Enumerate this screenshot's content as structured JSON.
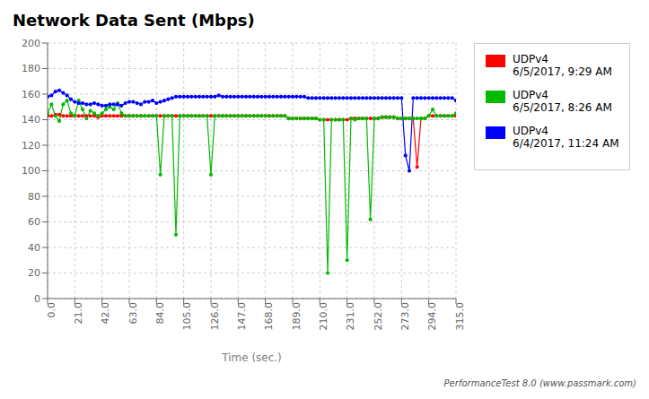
{
  "chart_data": {
    "type": "line",
    "title": "Network Data Sent (Mbps)",
    "xlabel": "Time (sec.)",
    "annotations": [
      "PerformanceTest 8.0 (www.passmark.com)"
    ],
    "xlim": [
      0,
      315
    ],
    "ylim": [
      0,
      200
    ],
    "xticks": [
      {
        "value": 0,
        "label": "0.0"
      },
      {
        "value": 21,
        "label": "21.0"
      },
      {
        "value": 42,
        "label": "42.0"
      },
      {
        "value": 63,
        "label": "63.0"
      },
      {
        "value": 84,
        "label": "84.0"
      },
      {
        "value": 105,
        "label": "105.0"
      },
      {
        "value": 126,
        "label": "126.0"
      },
      {
        "value": 147,
        "label": "147.0"
      },
      {
        "value": 168,
        "label": "168.0"
      },
      {
        "value": 189,
        "label": "189.0"
      },
      {
        "value": 210,
        "label": "210.0"
      },
      {
        "value": 231,
        "label": "231.0"
      },
      {
        "value": 252,
        "label": "252.0"
      },
      {
        "value": 273,
        "label": "273.0"
      },
      {
        "value": 294,
        "label": "294.0"
      },
      {
        "value": 315,
        "label": "315.0"
      }
    ],
    "yticks": [
      0,
      20,
      40,
      60,
      80,
      100,
      120,
      140,
      160,
      180,
      200
    ],
    "grid": true,
    "legend": "right",
    "marker": "circle",
    "x": [
      0,
      3,
      6,
      9,
      12,
      15,
      18,
      21,
      24,
      27,
      30,
      33,
      36,
      39,
      42,
      45,
      48,
      51,
      54,
      57,
      60,
      63,
      66,
      69,
      72,
      75,
      78,
      81,
      84,
      87,
      90,
      93,
      96,
      99,
      102,
      105,
      108,
      111,
      114,
      117,
      120,
      123,
      126,
      129,
      132,
      135,
      138,
      141,
      144,
      147,
      150,
      153,
      156,
      159,
      162,
      165,
      168,
      171,
      174,
      177,
      180,
      183,
      186,
      189,
      192,
      195,
      198,
      201,
      204,
      207,
      210,
      213,
      216,
      219,
      222,
      225,
      228,
      231,
      234,
      237,
      240,
      243,
      246,
      249,
      252,
      255,
      258,
      261,
      264,
      267,
      270,
      273,
      276,
      279,
      282,
      285,
      288,
      291,
      294,
      297,
      300,
      303,
      306,
      309,
      312,
      315
    ],
    "series": [
      {
        "name": "UDPv4\n6/5/2017, 9:29 AM",
        "color": "#ff0000",
        "values": [
          143,
          143,
          144,
          144,
          143,
          143,
          143,
          143,
          143,
          143,
          143,
          143,
          143,
          142,
          143,
          143,
          143,
          143,
          143,
          143,
          143,
          143,
          143,
          143,
          143,
          143,
          143,
          143,
          143,
          143,
          143,
          143,
          143,
          143,
          143,
          143,
          143,
          143,
          143,
          143,
          143,
          143,
          143,
          143,
          143,
          143,
          143,
          143,
          143,
          143,
          143,
          143,
          143,
          143,
          143,
          143,
          143,
          143,
          143,
          143,
          143,
          143,
          141,
          141,
          141,
          141,
          141,
          141,
          141,
          141,
          140,
          140,
          140,
          140,
          140,
          140,
          140,
          140,
          141,
          141,
          141,
          141,
          141,
          141,
          141,
          141,
          142,
          142,
          142,
          142,
          141,
          141,
          141,
          141,
          141,
          103,
          141,
          141,
          143,
          143,
          143,
          143,
          143,
          143,
          143,
          143
        ]
      },
      {
        "name": "UDPv4\n6/5/2017, 8:26 AM",
        "color": "#00bb00",
        "values": [
          145,
          152,
          143,
          139,
          152,
          155,
          145,
          143,
          155,
          148,
          141,
          147,
          145,
          143,
          145,
          148,
          150,
          148,
          153,
          145,
          143,
          143,
          143,
          143,
          143,
          143,
          143,
          143,
          143,
          97,
          143,
          143,
          143,
          50,
          143,
          143,
          143,
          143,
          143,
          143,
          143,
          143,
          97,
          143,
          143,
          143,
          143,
          143,
          143,
          143,
          143,
          143,
          143,
          143,
          143,
          143,
          143,
          143,
          143,
          143,
          143,
          143,
          141,
          141,
          141,
          141,
          141,
          141,
          141,
          141,
          140,
          140,
          20,
          140,
          140,
          140,
          140,
          30,
          141,
          140,
          141,
          141,
          141,
          62,
          141,
          141,
          142,
          142,
          142,
          142,
          141,
          141,
          141,
          141,
          141,
          141,
          141,
          141,
          143,
          148,
          143,
          143,
          143,
          143,
          143,
          145
        ]
      },
      {
        "name": "UDPv4\n6/4/2017, 11:24 AM",
        "color": "#0000ff",
        "values": [
          158,
          159,
          162,
          163,
          161,
          159,
          156,
          154,
          153,
          153,
          152,
          152,
          153,
          152,
          151,
          151,
          152,
          152,
          152,
          151,
          153,
          154,
          154,
          153,
          152,
          154,
          154,
          155,
          153,
          154,
          155,
          156,
          157,
          158,
          158,
          158,
          158,
          158,
          158,
          158,
          158,
          158,
          158,
          158,
          159,
          158,
          158,
          158,
          158,
          158,
          158,
          158,
          158,
          158,
          158,
          158,
          158,
          158,
          158,
          158,
          158,
          158,
          158,
          158,
          158,
          158,
          158,
          157,
          157,
          157,
          157,
          157,
          157,
          157,
          157,
          157,
          157,
          157,
          157,
          157,
          157,
          157,
          157,
          157,
          157,
          157,
          157,
          157,
          157,
          157,
          157,
          157,
          112,
          100,
          157,
          157,
          157,
          157,
          157,
          157,
          157,
          157,
          157,
          157,
          157,
          155
        ]
      }
    ]
  }
}
